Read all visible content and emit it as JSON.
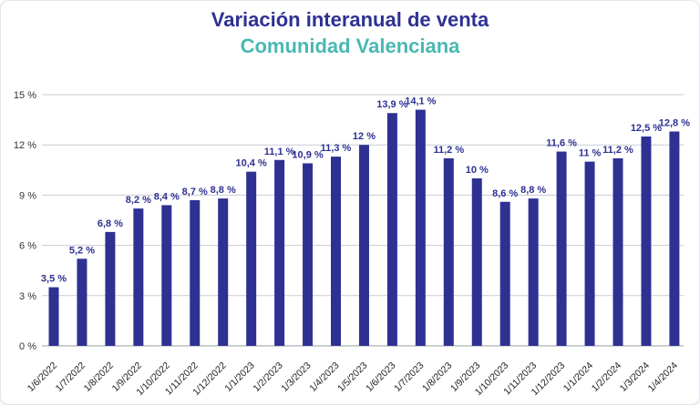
{
  "chart_data": {
    "type": "bar",
    "title": "Variación interanual de venta",
    "subtitle": "Comunidad Valenciana",
    "categories": [
      "1/6/2022",
      "1/7/2022",
      "1/8/2022",
      "1/9/2022",
      "1/10/2022",
      "1/11/2022",
      "1/12/2022",
      "1/1/2023",
      "1/2/2023",
      "1/3/2023",
      "1/4/2023",
      "1/5/2023",
      "1/6/2023",
      "1/7/2023",
      "1/8/2023",
      "1/9/2023",
      "1/10/2023",
      "1/11/2023",
      "1/12/2023",
      "1/1/2024",
      "1/2/2024",
      "1/3/2024",
      "1/4/2024"
    ],
    "values": [
      3.5,
      5.2,
      6.8,
      8.2,
      8.4,
      8.7,
      8.8,
      10.4,
      11.1,
      10.9,
      11.3,
      12,
      13.9,
      14.1,
      11.2,
      10,
      8.6,
      8.8,
      11.6,
      11,
      11.2,
      12.5,
      12.8
    ],
    "value_labels": [
      "3,5 %",
      "5,2 %",
      "6,8 %",
      "8,2 %",
      "8,4 %",
      "8,7 %",
      "8,8 %",
      "10,4 %",
      "11,1 %",
      "10,9 %",
      "11,3 %",
      "12 %",
      "13,9 %",
      "14,1 %",
      "11,2 %",
      "10 %",
      "8,6 %",
      "8,8 %",
      "11,6 %",
      "11 %",
      "11,2 %",
      "12,5 %",
      "12,8 %"
    ],
    "ylim": [
      0,
      15
    ],
    "yticks": [
      0,
      3,
      6,
      9,
      12,
      15
    ],
    "ytick_labels": [
      "0 %",
      "3 %",
      "6 %",
      "9 %",
      "12 %",
      "15 %"
    ],
    "grid": true,
    "colors": {
      "bar": "#2e3192",
      "title": "#2e3192",
      "subtitle": "#4ab8b2",
      "grid": "#c9ccd3"
    }
  }
}
